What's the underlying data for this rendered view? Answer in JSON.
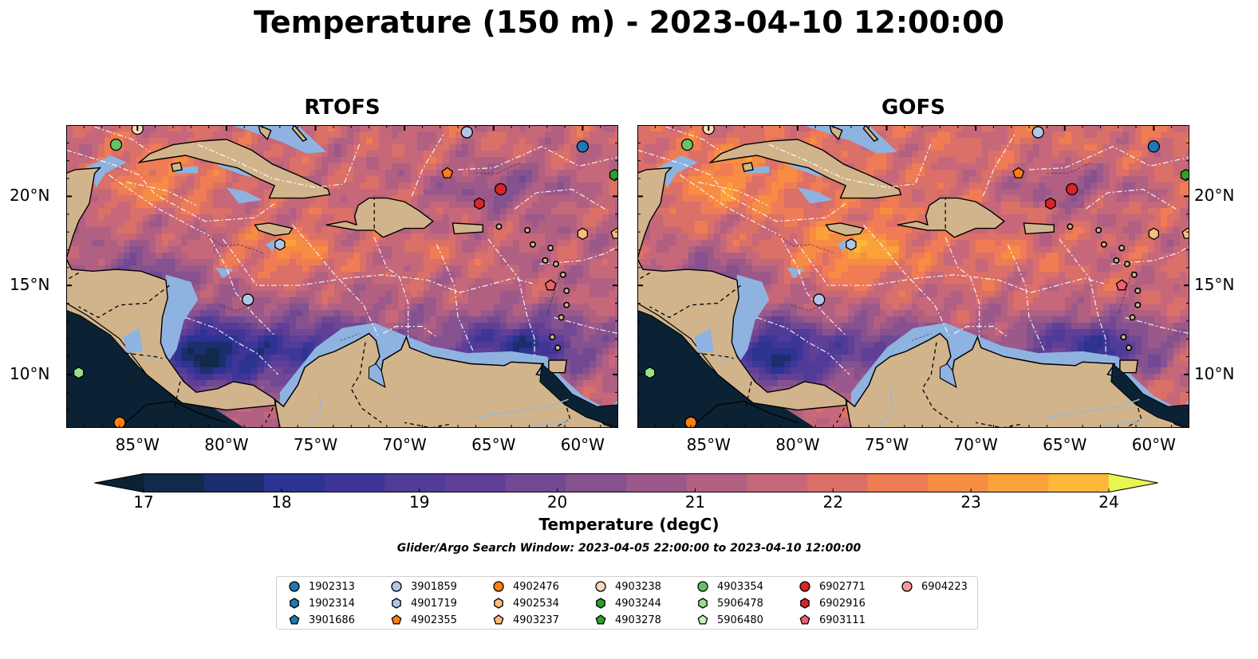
{
  "title": "Temperature (150 m) - 2023-04-10 12:00:00",
  "panels": [
    {
      "title": "RTOFS",
      "warm_bias": 0.0
    },
    {
      "title": "GOFS",
      "warm_bias": 0.35
    }
  ],
  "map_extent": {
    "lon": [
      -89,
      -58
    ],
    "lat": [
      7,
      24
    ]
  },
  "lon_ticks": [
    "85°W",
    "80°W",
    "75°W",
    "70°W",
    "65°W",
    "60°W"
  ],
  "lon_tick_values": [
    -85,
    -80,
    -75,
    -70,
    -65,
    -60
  ],
  "lat_ticks": [
    "20°N",
    "15°N",
    "10°N"
  ],
  "lat_tick_values": [
    20,
    15,
    10
  ],
  "colorbar": {
    "label": "Temperature (degC)",
    "min": 16.5,
    "max": 24.5,
    "step": 0.5,
    "tick_labels": [
      "17",
      "18",
      "19",
      "20",
      "21",
      "22",
      "23",
      "24"
    ],
    "tick_values": [
      17,
      18,
      19,
      20,
      21,
      22,
      23,
      24
    ],
    "colors": [
      "#0a2233",
      "#122a4a",
      "#1c2e6e",
      "#2c3390",
      "#3f3596",
      "#503c98",
      "#603f96",
      "#714894",
      "#85518f",
      "#9a598a",
      "#b16082",
      "#c6687a",
      "#da7068",
      "#ef7c55",
      "#f78c43",
      "#fba13a",
      "#fdb83a",
      "#fcd13f",
      "#f6e647",
      "#e9f651"
    ]
  },
  "search_window": "Glider/Argo Search Window: 2023-04-05 22:00:00 to 2023-04-10 12:00:00",
  "legend": [
    {
      "id": "1902313",
      "color": "#1f77b4",
      "shape": "circle"
    },
    {
      "id": "1902314",
      "color": "#1f77b4",
      "shape": "hexagon"
    },
    {
      "id": "3901686",
      "color": "#1f77b4",
      "shape": "pentagon"
    },
    {
      "id": "3901859",
      "color": "#aec7e8",
      "shape": "circle"
    },
    {
      "id": "4901719",
      "color": "#aec7e8",
      "shape": "hexagon"
    },
    {
      "id": "4902355",
      "color": "#ff7f0e",
      "shape": "pentagon"
    },
    {
      "id": "4902476",
      "color": "#ff7f0e",
      "shape": "circle"
    },
    {
      "id": "4902534",
      "color": "#ffbb78",
      "shape": "hexagon"
    },
    {
      "id": "4903237",
      "color": "#ffbb78",
      "shape": "pentagon"
    },
    {
      "id": "4903238",
      "color": "#ffd8b8",
      "shape": "circle"
    },
    {
      "id": "4903244",
      "color": "#2ca02c",
      "shape": "hexagon"
    },
    {
      "id": "4903278",
      "color": "#2ca02c",
      "shape": "pentagon"
    },
    {
      "id": "4903354",
      "color": "#66c266",
      "shape": "circle"
    },
    {
      "id": "5906478",
      "color": "#98df8a",
      "shape": "hexagon"
    },
    {
      "id": "5906480",
      "color": "#c7f0bf",
      "shape": "pentagon"
    },
    {
      "id": "6902771",
      "color": "#d62728",
      "shape": "circle"
    },
    {
      "id": "6902916",
      "color": "#d62728",
      "shape": "hexagon"
    },
    {
      "id": "6903111",
      "color": "#e8636d",
      "shape": "pentagon"
    },
    {
      "id": "6904223",
      "color": "#ff9896",
      "shape": "circle"
    }
  ],
  "markers": [
    {
      "id": "4903354",
      "lon": -86.2,
      "lat": 22.9
    },
    {
      "id": "4903238",
      "lon": -85.0,
      "lat": 23.8
    },
    {
      "id": "3901859",
      "lon": -66.5,
      "lat": 23.6
    },
    {
      "id": "1902313",
      "lon": -60.0,
      "lat": 22.8
    },
    {
      "id": "4903244",
      "lon": -58.2,
      "lat": 21.2
    },
    {
      "id": "4902355",
      "lon": -67.6,
      "lat": 21.3
    },
    {
      "id": "6902771",
      "lon": -64.6,
      "lat": 20.4
    },
    {
      "id": "6902916",
      "lon": -65.8,
      "lat": 19.6
    },
    {
      "id": "4902534",
      "lon": -60.0,
      "lat": 17.9
    },
    {
      "id": "4903237",
      "lon": -58.1,
      "lat": 17.9
    },
    {
      "id": "4901719",
      "lon": -77.0,
      "lat": 17.3
    },
    {
      "id": "6903111",
      "lon": -61.8,
      "lat": 15.0
    },
    {
      "id": "3901859",
      "lon": -78.8,
      "lat": 14.2
    },
    {
      "id": "5906478",
      "lon": -88.3,
      "lat": 10.1
    },
    {
      "id": "4902476",
      "lon": -86.0,
      "lat": 7.3
    }
  ]
}
